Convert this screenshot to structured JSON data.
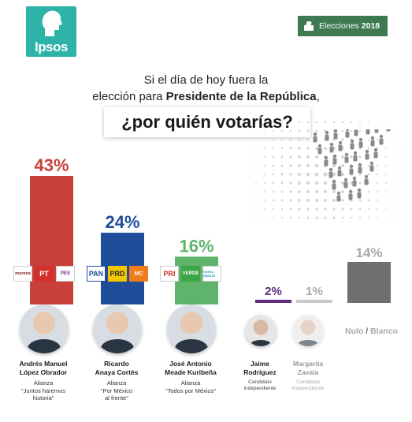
{
  "brand": {
    "logo_text": "Ipsos",
    "colors": {
      "teal": "#2db3a8",
      "badge_green": "#3d7a52"
    }
  },
  "badge": {
    "icon": "ballot-box-icon",
    "label": "Elecciones",
    "year": "2018"
  },
  "question": {
    "line1": "Si el día de hoy fuera la",
    "line2_pre": "elección para ",
    "line2_bold": "Presidente de la República",
    "line2_post": ",",
    "main": "¿por quién votarías?"
  },
  "chart_data": {
    "type": "bar",
    "title": "",
    "categories": [
      "Andrés Manuel López Obrador",
      "Ricardo Anaya Cortés",
      "José Antonio Meade Kuribeña",
      "Jaime Rodríguez",
      "Margarita Zavala",
      "Nulo / Blanco"
    ],
    "values": [
      43,
      24,
      16,
      2,
      1,
      14
    ],
    "value_labels": [
      "43%",
      "24%",
      "16%",
      "2%",
      "1%",
      "14%"
    ],
    "colors": [
      "#c8403a",
      "#1f4d9a",
      "#5fb36b",
      "#5c2d7a",
      "#c9c9c9",
      "#6f6f6f"
    ],
    "label_colors": [
      "#c8403a",
      "#1f4d9a",
      "#5fb36b",
      "#5c2d7a",
      "#a9a9a9",
      "#a9a9a9"
    ],
    "ylim": [
      0,
      43
    ],
    "grid": false,
    "legend": "none"
  },
  "candidates": [
    {
      "name1": "Andrés Manuel",
      "name2": "López Obrador",
      "tag": "Alianza",
      "alliance1": "\"Juntos haremos",
      "alliance2": "historia\"",
      "parties": [
        "morena",
        "PT",
        "PES"
      ]
    },
    {
      "name1": "Ricardo",
      "name2": "Anaya Cortés",
      "tag": "Alianza",
      "alliance1": "\"Por México",
      "alliance2": "al frente\"",
      "parties": [
        "PAN",
        "PRD",
        "MC"
      ]
    },
    {
      "name1": "José Antonio",
      "name2": "Meade Kuribeña",
      "tag": "Alianza",
      "alliance1": "\"Todos por México\"",
      "alliance2": "",
      "parties": [
        "PRI",
        "VERDE",
        "nueva alianza"
      ]
    },
    {
      "name1": "Jaime",
      "name2": "Rodríguez",
      "tag": "Candidato",
      "alliance1": "independiente",
      "alliance2": ""
    },
    {
      "name1": "Margarita",
      "name2": "Zavala",
      "tag": "Candidata",
      "alliance1": "independiente",
      "alliance2": ""
    }
  ],
  "nulo": {
    "a": "Nulo",
    "sep": " / ",
    "b": "Blanco"
  }
}
